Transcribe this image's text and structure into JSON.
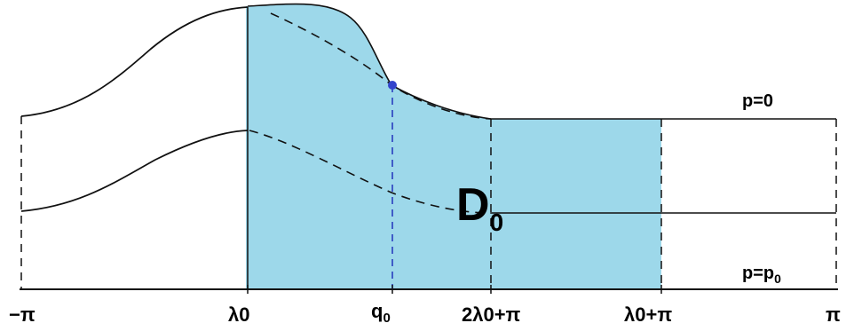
{
  "region": {
    "name": "D",
    "subscript": "0",
    "fill_color": "#9dd8ea"
  },
  "curve_labels": {
    "upper": "p=0",
    "lower_main": "p=p",
    "lower_sub": "0"
  },
  "axis_labels": [
    {
      "id": "minus-pi",
      "text": "−π"
    },
    {
      "id": "lambda0",
      "text": "λ0"
    },
    {
      "id": "q0",
      "text": "q",
      "sub": "0"
    },
    {
      "id": "two-lambda0-plus-pi",
      "text": "2λ0+π"
    },
    {
      "id": "lambda0-plus-pi",
      "text": "λ0+π"
    },
    {
      "id": "pi",
      "text": "π"
    }
  ],
  "colors": {
    "line": "#111111",
    "marker": "#3344cc",
    "guide": "#2233bb"
  }
}
